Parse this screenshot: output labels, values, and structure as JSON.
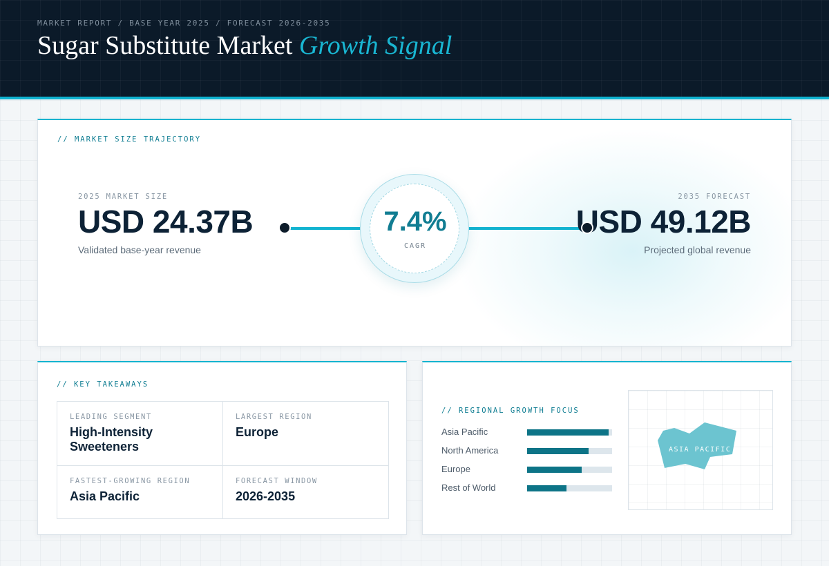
{
  "header": {
    "breadcrumb": "MARKET REPORT / BASE YEAR 2025 / FORECAST 2026-2035",
    "title_main": "Sugar Substitute Market",
    "title_accent": "Growth Signal",
    "accent_color": "#19b6d2"
  },
  "trajectory": {
    "section_label": "// MARKET SIZE TRAJECTORY",
    "base": {
      "label": "2025 MARKET SIZE",
      "value": "USD 24.37B",
      "subtitle": "Validated base-year revenue"
    },
    "cagr": {
      "value": "7.4%",
      "label": "CAGR"
    },
    "forecast": {
      "label": "2035 FORECAST",
      "value": "USD 49.12B",
      "subtitle": "Projected global revenue"
    }
  },
  "takeaways": {
    "section_label": "// KEY TAKEAWAYS",
    "items": [
      {
        "label": "LEADING SEGMENT",
        "value": "High-Intensity Sweeteners"
      },
      {
        "label": "LARGEST REGION",
        "value": "Europe"
      },
      {
        "label": "FASTEST-GROWING REGION",
        "value": "Asia Pacific"
      },
      {
        "label": "FORECAST WINDOW",
        "value": "2026-2035"
      }
    ]
  },
  "regional": {
    "section_label": "// REGIONAL GROWTH FOCUS",
    "bars": [
      {
        "name": "Asia Pacific",
        "level": 0.96
      },
      {
        "name": "North America",
        "level": 0.72
      },
      {
        "name": "Europe",
        "level": 0.64
      },
      {
        "name": "Rest of World",
        "level": 0.46
      }
    ],
    "bar_color": "#0d7487",
    "map": {
      "label": "ASIA PACIFIC",
      "highlight_color": "#6cc4d0",
      "icon": "asia-pacific-map-icon"
    }
  }
}
